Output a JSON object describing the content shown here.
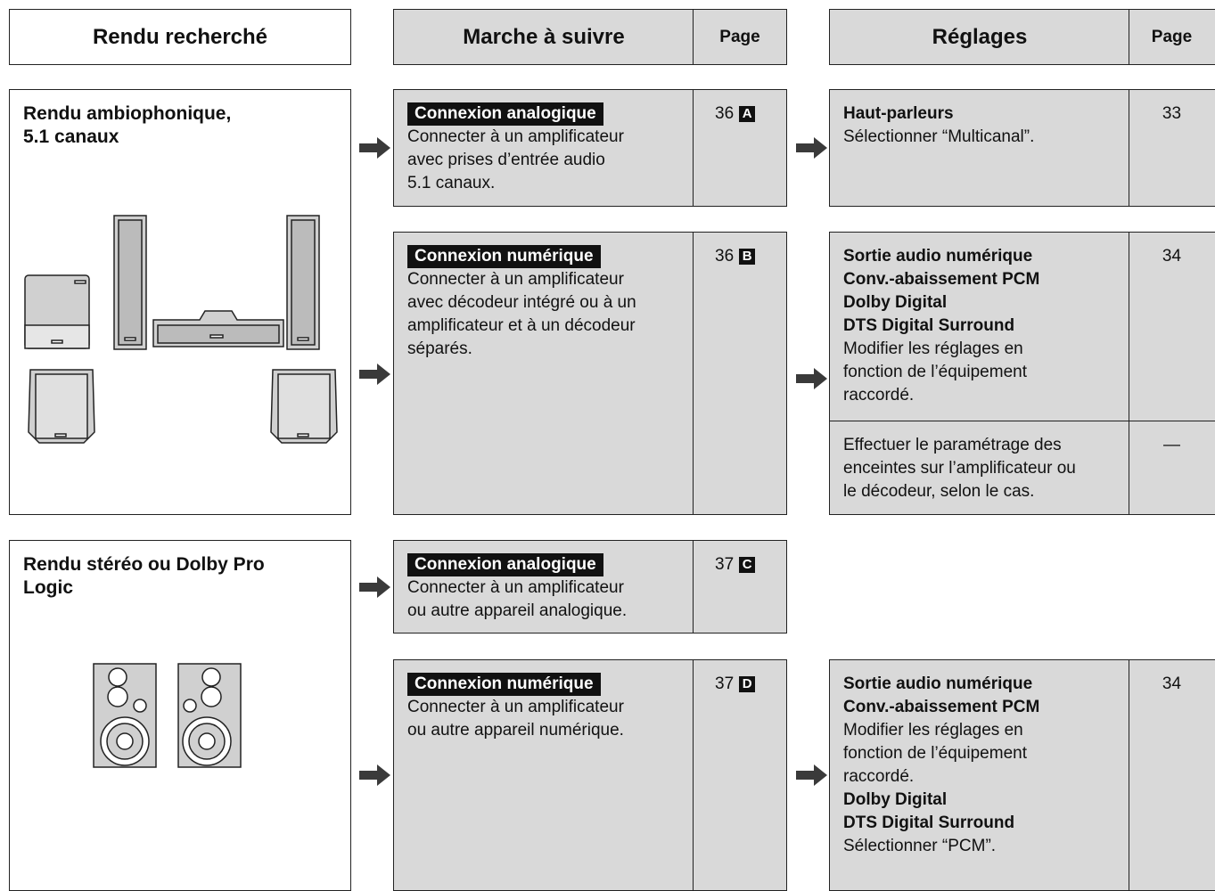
{
  "header": {
    "goal": "Rendu recherché",
    "procedure": "Marche à suivre",
    "procedure_page": "Page",
    "settings": "Réglages",
    "settings_page": "Page"
  },
  "sections": [
    {
      "goal": [
        "Rendu ambiophonique,",
        "5.1 canaux"
      ],
      "connections": [
        {
          "label": "Connexion analogique",
          "lines": [
            "Connecter à un amplificateur",
            "avec prises d’entrée audio",
            "5.1 canaux."
          ],
          "page": "36",
          "letter": "A",
          "settings": [
            {
              "blocks": [
                {
                  "heading": [
                    "Haut-parleurs"
                  ],
                  "text": [
                    "Sélectionner “Multicanal”."
                  ]
                }
              ],
              "page": "33"
            }
          ]
        },
        {
          "label": "Connexion numérique",
          "lines": [
            "Connecter à un amplificateur",
            "avec décodeur intégré ou à un",
            "amplificateur et à un décodeur",
            "séparés."
          ],
          "page": "36",
          "letter": "B",
          "settings": [
            {
              "blocks": [
                {
                  "heading": [
                    "Sortie audio numérique",
                    "Conv.-abaissement PCM",
                    "Dolby Digital",
                    "DTS Digital Surround"
                  ],
                  "text": [
                    "Modifier les réglages en",
                    "fonction de l’équipement",
                    "raccordé."
                  ]
                }
              ],
              "page": "34"
            },
            {
              "blocks": [
                {
                  "text": [
                    "Effectuer le paramétrage des",
                    "enceintes sur l’amplificateur ou",
                    "le décodeur, selon le cas."
                  ]
                }
              ],
              "page": "—"
            }
          ]
        }
      ]
    },
    {
      "goal": [
        "Rendu stéréo ou Dolby Pro",
        "Logic"
      ],
      "connections": [
        {
          "label": "Connexion analogique",
          "lines": [
            "Connecter à un amplificateur",
            "ou autre appareil analogique."
          ],
          "page": "37",
          "letter": "C"
        },
        {
          "label": "Connexion numérique",
          "lines": [
            "Connecter à un amplificateur",
            "ou autre appareil numérique."
          ],
          "page": "37",
          "letter": "D",
          "settings": [
            {
              "blocks": [
                {
                  "heading": [
                    "Sortie audio numérique",
                    "Conv.-abaissement PCM"
                  ],
                  "text": [
                    "Modifier les réglages en",
                    "fonction de l’équipement",
                    "raccordé."
                  ]
                },
                {
                  "heading": [
                    "Dolby Digital",
                    "DTS Digital Surround"
                  ],
                  "text": [
                    "Sélectionner “PCM”."
                  ]
                }
              ],
              "page": "34"
            }
          ]
        }
      ]
    }
  ]
}
